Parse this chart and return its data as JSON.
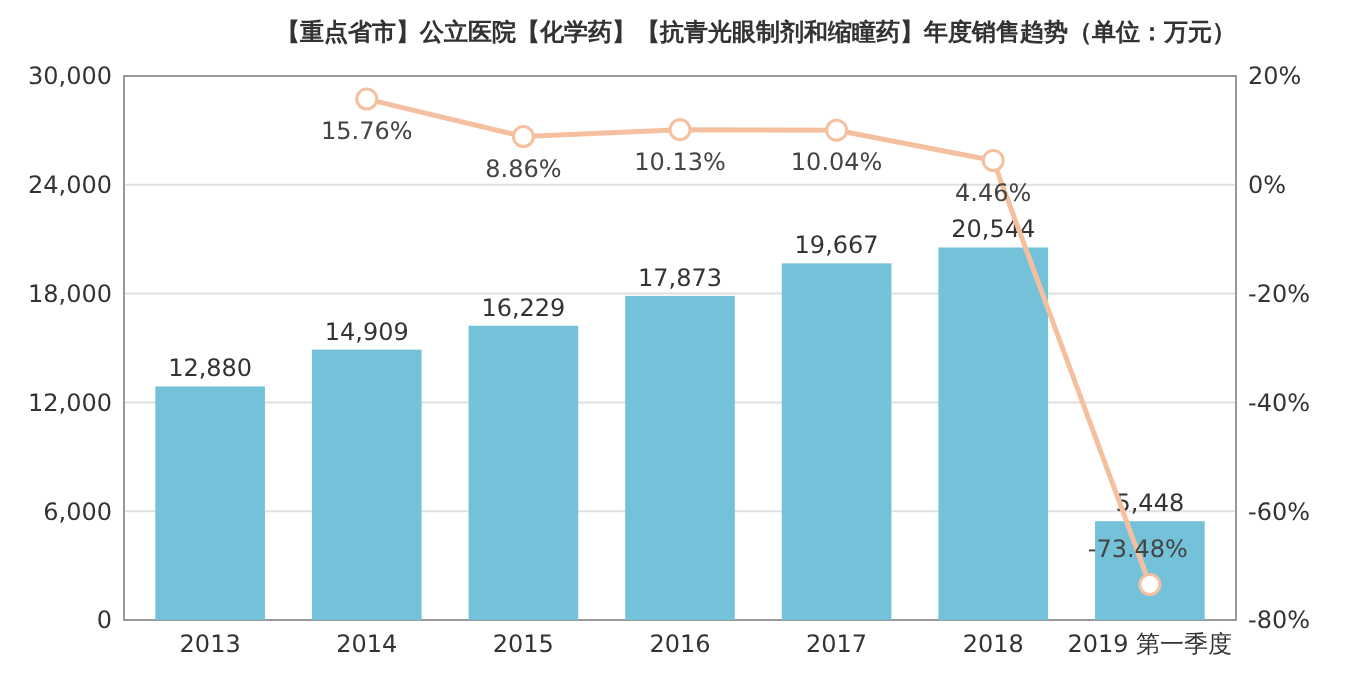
{
  "chart_data": {
    "type": "bar",
    "title": "【重点省市】公立医院【化学药】【抗青光眼制剂和缩瞳药】年度销售趋势（单位：万元）",
    "categories": [
      "2013",
      "2014",
      "2015",
      "2016",
      "2017",
      "2018",
      "2019 第一季度"
    ],
    "series": [
      {
        "color": "#74c2d9",
        "values": [
          12880,
          14909,
          16229,
          17873,
          19667,
          20544,
          5448
        ],
        "value_labels": [
          "12,880",
          "14,909",
          "16,229",
          "17,873",
          "19,667",
          "20,544",
          "5,448"
        ]
      },
      {
        "type": "line",
        "axis": "y2",
        "color": "#f4c0a0",
        "marker": "circle",
        "values": [
          null,
          15.76,
          8.86,
          10.13,
          10.04,
          4.46,
          -73.48
        ],
        "value_labels": [
          null,
          "15.76%",
          "8.86%",
          "10.13%",
          "10.04%",
          "4.46%",
          "-73.48%"
        ]
      }
    ],
    "ylim": [
      0,
      30000
    ],
    "yticks": [
      {
        "value": 0,
        "label": "0"
      },
      {
        "value": 6000,
        "label": "6,000"
      },
      {
        "value": 12000,
        "label": "12,000"
      },
      {
        "value": 18000,
        "label": "18,000"
      },
      {
        "value": 24000,
        "label": "24,000"
      },
      {
        "value": 30000,
        "label": "30,000"
      }
    ],
    "y2lim": [
      -80,
      20
    ],
    "y2ticks": [
      {
        "value": -80,
        "label": "-80%"
      },
      {
        "value": -60,
        "label": "-60%"
      },
      {
        "value": -40,
        "label": "-40%"
      },
      {
        "value": -20,
        "label": "-20%"
      },
      {
        "value": 0,
        "label": "0%"
      },
      {
        "value": 20,
        "label": "20%"
      }
    ],
    "grid": "y"
  }
}
